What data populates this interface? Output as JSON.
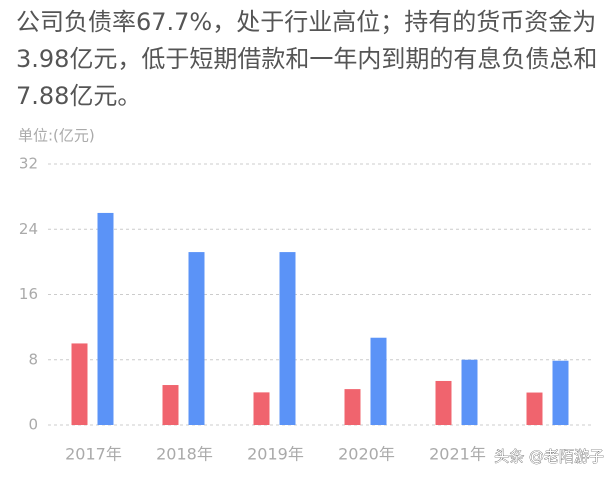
{
  "chart_data": {
    "type": "bar",
    "title": "公司负债率67.7%，处于行业高位；持有的货币资金为3.98亿元，低于短期借款和一年内到期的有息负债总和7.88亿元。",
    "unit_label": "单位:(亿元)",
    "categories": [
      "2017年",
      "2018年",
      "2019年",
      "2020年",
      "2021年",
      null
    ],
    "series": [
      {
        "color": "#f0646e",
        "values": [
          10.0,
          4.9,
          4.0,
          4.4,
          5.4,
          3.98
        ]
      },
      {
        "color": "#5b93f7",
        "values": [
          26.0,
          21.2,
          21.2,
          10.7,
          8.0,
          7.88
        ]
      }
    ],
    "ylim": [
      0,
      32
    ],
    "yticks": [
      0,
      8,
      16,
      24,
      32
    ],
    "grid": true,
    "watermark": "头条 @老陌游子"
  }
}
